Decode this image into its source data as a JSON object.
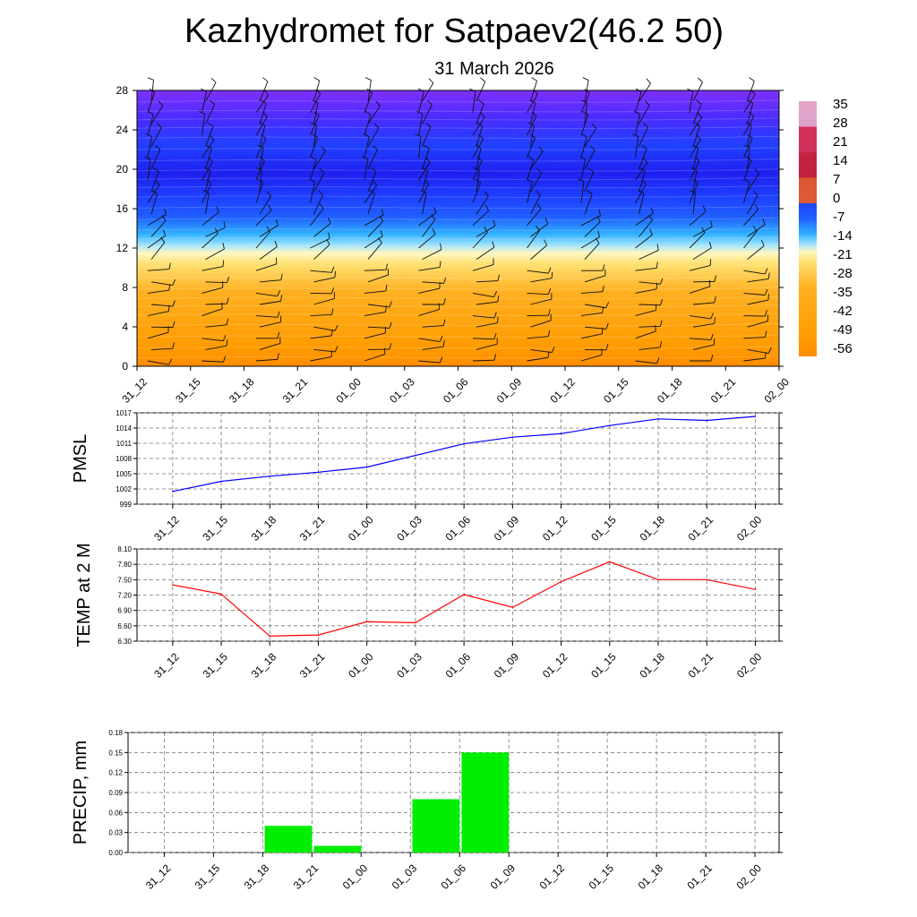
{
  "title": "Kazhydromet for Satpaev2(46.2 50)",
  "subtitle": "31 March 2026",
  "colors": {
    "pmsl_line": "#0000ff",
    "temp_line": "#ff0000",
    "precip_bar": "#00ee00",
    "grid": "#777777"
  },
  "chart_data": [
    {
      "type": "heatmap",
      "x": [
        "31_12",
        "31_15",
        "31_18",
        "31_21",
        "01_00",
        "01_03",
        "01_06",
        "01_09",
        "01_12",
        "01_15",
        "01_18",
        "01_21",
        "02_00"
      ],
      "y_ticks": [
        "0",
        "4",
        "8",
        "12",
        "16",
        "20",
        "24",
        "28"
      ],
      "ylim": [
        0,
        28
      ],
      "colorbar_labels": [
        "35",
        "28",
        "21",
        "14",
        "7",
        "0",
        "-7",
        "-14",
        "-21",
        "-28",
        "-35",
        "-42",
        "-49",
        "-56"
      ],
      "colorbar_range": [
        -60,
        40
      ],
      "overlay": "wind barbs"
    },
    {
      "type": "line",
      "ylabel": "PMSL",
      "x": [
        "31_12",
        "31_15",
        "31_18",
        "31_21",
        "01_00",
        "01_03",
        "01_06",
        "01_09",
        "01_12",
        "01_15",
        "01_18",
        "01_21",
        "02_00"
      ],
      "y_ticks": [
        "1017",
        "1014",
        "1011",
        "1008",
        "1005",
        "1002",
        "999"
      ],
      "ylim": [
        999,
        1017
      ],
      "values": [
        1001.5,
        1003.5,
        1004.5,
        1005.3,
        1006.3,
        1008.6,
        1010.9,
        1012.2,
        1012.9,
        1014.5,
        1015.8,
        1015.5,
        1016.3
      ],
      "grid": true
    },
    {
      "type": "line",
      "ylabel": "TEMP at 2 M",
      "x": [
        "31_12",
        "31_15",
        "31_18",
        "31_21",
        "01_00",
        "01_03",
        "01_06",
        "01_09",
        "01_12",
        "01_15",
        "01_18",
        "01_21",
        "02_00"
      ],
      "y_ticks": [
        "8.10",
        "7.80",
        "7.50",
        "7.20",
        "6.90",
        "6.60",
        "6.30"
      ],
      "ylim": [
        6.3,
        8.1
      ],
      "values": [
        7.4,
        7.22,
        6.4,
        6.42,
        6.68,
        6.66,
        7.21,
        6.96,
        7.46,
        7.85,
        7.5,
        7.5,
        7.31
      ],
      "grid": true
    },
    {
      "type": "bar",
      "ylabel": "PRECIP, mm",
      "x": [
        "31_12",
        "31_15",
        "31_18",
        "31_21",
        "01_00",
        "01_03",
        "01_06",
        "01_09",
        "01_12",
        "01_15",
        "01_18",
        "01_21",
        "02_00"
      ],
      "y_ticks": [
        "0.18",
        "0.15",
        "0.12",
        "0.09",
        "0.06",
        "0.03",
        "0.00"
      ],
      "ylim": [
        0,
        0.18
      ],
      "values": [
        0,
        0,
        0,
        0.04,
        0.01,
        0,
        0.08,
        0.15,
        0,
        0,
        0,
        0,
        0
      ],
      "grid": true
    }
  ]
}
